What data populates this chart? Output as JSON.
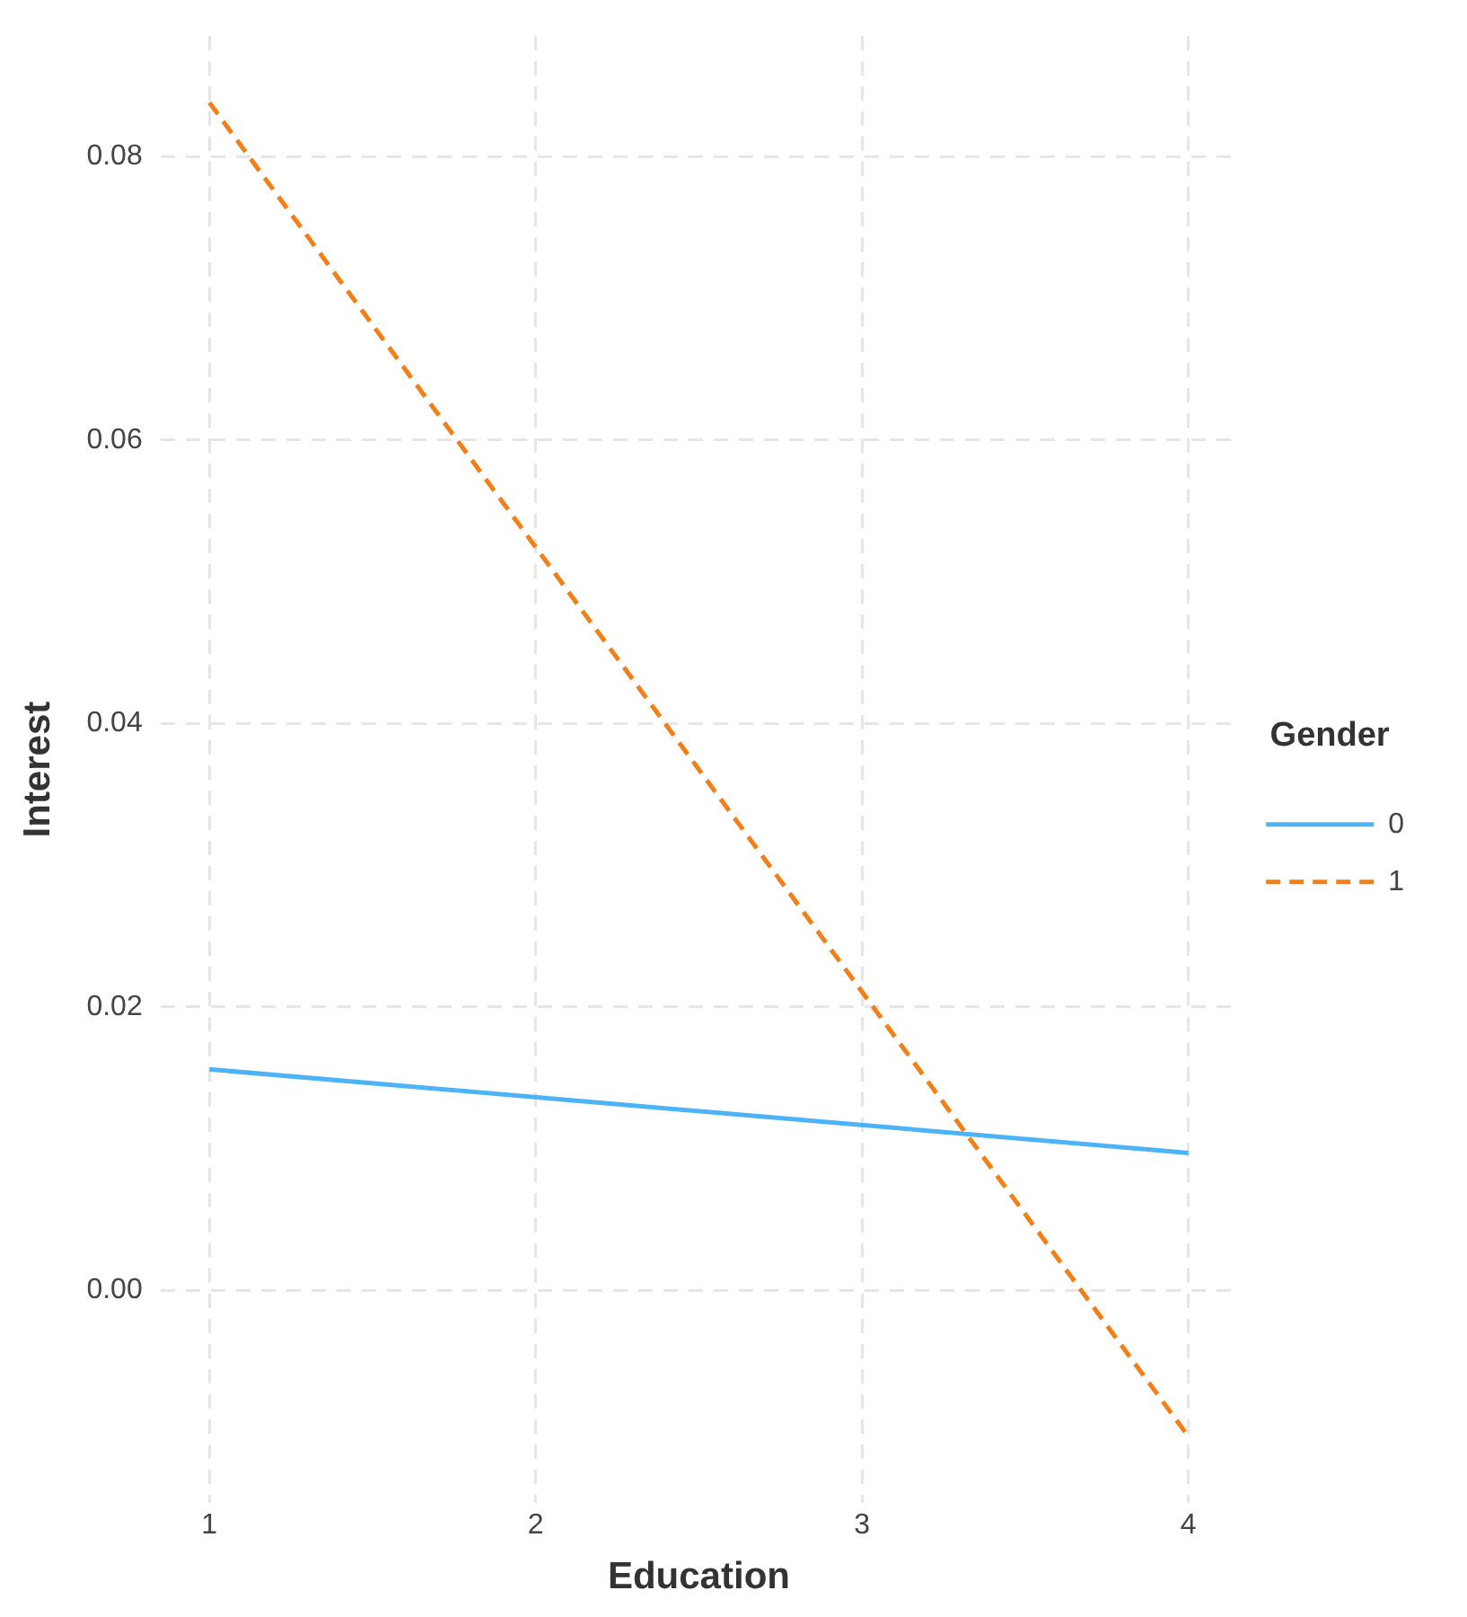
{
  "chart_data": {
    "type": "line",
    "xlabel": "Education",
    "ylabel": "Interest",
    "legend_title": "Gender",
    "x": [
      1,
      4
    ],
    "series": [
      {
        "name": "0",
        "color": "#4db3f7",
        "values": [
          0.0156,
          0.0097
        ],
        "line_style": "solid"
      },
      {
        "name": "1",
        "color": "#f57f17",
        "values": [
          0.0838,
          -0.0103
        ],
        "line_style": "dashed"
      }
    ],
    "xlim": [
      0.85,
      4.15
    ],
    "xticks": [
      1,
      2,
      3,
      4
    ],
    "ylim": [
      -0.015,
      0.0885
    ],
    "yticks": [
      {
        "value": 0,
        "label": "0.00"
      },
      {
        "value": 0.02,
        "label": "0.02"
      },
      {
        "value": 0.04,
        "label": "0.04"
      },
      {
        "value": 0.06,
        "label": "0.06"
      },
      {
        "value": 0.08,
        "label": "0.08"
      }
    ],
    "grid": true,
    "legend": "right",
    "marker": "none"
  }
}
